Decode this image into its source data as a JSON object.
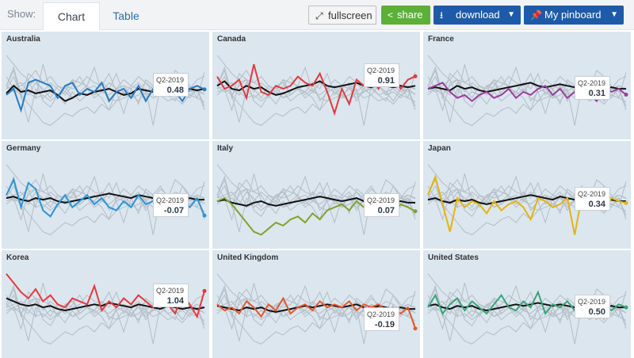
{
  "toolbar": {
    "show_label": "Show:",
    "tabs": [
      {
        "label": "Chart"
      },
      {
        "label": "Table"
      }
    ],
    "buttons": {
      "fullscreen": {
        "label": "fullscreen",
        "icon": "expand-icon"
      },
      "share": {
        "label": "share",
        "icon": "share-icon"
      },
      "download": {
        "label": "download",
        "icon": "download-icon"
      },
      "pinboard": {
        "label": "My pinboard",
        "icon": "pin-icon"
      }
    },
    "colors": {
      "share": "#5cb038",
      "primary": "#1d5ba8",
      "panel_bg": "#dbe6ef"
    }
  },
  "chart_data": [
    {
      "type": "line",
      "title": "Australia",
      "color": "#2b7bc0",
      "highlight": {
        "period": "Q2-2019",
        "value": "0.48"
      },
      "series": [
        {
          "name": "Australia",
          "values": [
            0.3,
            0.5,
            -0.2,
            0.7,
            0.8,
            0.7,
            0.6,
            0.2,
            0.6,
            0.7,
            0.3,
            0.5,
            0.4,
            0.7,
            0.1,
            0.4,
            0.5,
            0.2,
            0.6,
            0.1,
            0.5,
            0.3,
            0.6,
            0.4,
            0.1,
            0.5,
            0.6,
            0.48
          ]
        }
      ],
      "reference": [
        0.35,
        0.6,
        0.4,
        0.45,
        0.35,
        0.4,
        0.45,
        0.3,
        0.1,
        0.2,
        0.35,
        0.3,
        0.4,
        0.45,
        0.5,
        0.4,
        0.3,
        0.35,
        0.5,
        0.45,
        0.4,
        0.5,
        0.45,
        0.5,
        0.4,
        0.5,
        0.45,
        0.5
      ]
    },
    {
      "type": "line",
      "title": "Canada",
      "color": "#e03a3e",
      "highlight": {
        "period": "Q2-2019",
        "value": "0.91"
      },
      "series": [
        {
          "name": "Canada",
          "values": [
            0.9,
            0.5,
            0.6,
            0.8,
            0.2,
            1.3,
            0.4,
            0.3,
            0.6,
            0.5,
            0.6,
            0.9,
            0.7,
            0.6,
            1.0,
            0.4,
            -0.3,
            0.5,
            0.0,
            0.8,
            0.6,
            0.9,
            0.5,
            1.1,
            0.9,
            0.5,
            0.8,
            0.91
          ]
        }
      ],
      "reference": [
        0.6,
        0.75,
        0.5,
        0.45,
        0.6,
        0.5,
        0.55,
        0.4,
        0.3,
        0.35,
        0.45,
        0.55,
        0.6,
        0.65,
        0.75,
        0.6,
        0.55,
        0.6,
        0.65,
        0.7,
        0.6,
        0.55,
        0.65,
        0.6,
        0.55,
        0.6,
        0.55,
        0.6
      ]
    },
    {
      "type": "line",
      "title": "France",
      "color": "#9b3d9e",
      "highlight": {
        "period": "Q2-2019",
        "value": "0.31"
      },
      "series": [
        {
          "name": "France",
          "values": [
            0.5,
            0.6,
            0.7,
            0.4,
            0.2,
            0.3,
            0.1,
            0.3,
            0.4,
            0.2,
            0.3,
            0.5,
            0.2,
            0.4,
            0.3,
            0.5,
            0.6,
            0.3,
            0.5,
            0.2,
            0.4,
            0.5,
            0.3,
            0.1,
            0.6,
            0.4,
            0.5,
            0.31
          ]
        }
      ],
      "reference": [
        0.5,
        0.55,
        0.5,
        0.45,
        0.6,
        0.5,
        0.55,
        0.45,
        0.4,
        0.45,
        0.5,
        0.55,
        0.6,
        0.65,
        0.7,
        0.6,
        0.55,
        0.6,
        0.65,
        0.6,
        0.55,
        0.5,
        0.6,
        0.55,
        0.5,
        0.55,
        0.5,
        0.5
      ]
    },
    {
      "type": "line",
      "title": "Germany",
      "color": "#2a96d6",
      "highlight": {
        "period": "Q2-2019",
        "value": "-0.07"
      },
      "series": [
        {
          "name": "Germany",
          "values": [
            0.6,
            1.1,
            0.2,
            1.0,
            0.8,
            0.1,
            -0.1,
            0.3,
            0.6,
            0.2,
            0.4,
            0.6,
            0.3,
            0.5,
            0.2,
            0.1,
            0.4,
            0.2,
            0.6,
            0.3,
            0.4,
            0.5,
            0.6,
            0.3,
            0.4,
            0.2,
            0.5,
            -0.07
          ]
        }
      ],
      "reference": [
        0.5,
        0.55,
        0.45,
        0.4,
        0.5,
        0.45,
        0.5,
        0.4,
        0.35,
        0.4,
        0.45,
        0.5,
        0.55,
        0.6,
        0.65,
        0.6,
        0.55,
        0.5,
        0.6,
        0.55,
        0.5,
        0.45,
        0.55,
        0.5,
        0.45,
        0.5,
        0.45,
        0.45
      ]
    },
    {
      "type": "line",
      "title": "Italy",
      "color": "#7ea32b",
      "highlight": {
        "period": "Q2-2019",
        "value": "0.07"
      },
      "series": [
        {
          "name": "Italy",
          "values": [
            0.4,
            0.5,
            0.3,
            0.0,
            -0.3,
            -0.6,
            -0.7,
            -0.5,
            -0.3,
            -0.4,
            -0.2,
            -0.1,
            -0.3,
            0.0,
            -0.2,
            0.1,
            0.2,
            0.3,
            0.1,
            0.4,
            0.2,
            0.3,
            0.1,
            0.2,
            0.0,
            0.3,
            0.2,
            0.07
          ]
        }
      ],
      "reference": [
        0.4,
        0.45,
        0.35,
        0.3,
        0.25,
        0.35,
        0.4,
        0.3,
        0.25,
        0.3,
        0.35,
        0.4,
        0.45,
        0.5,
        0.55,
        0.5,
        0.45,
        0.4,
        0.45,
        0.5,
        0.4,
        0.35,
        0.45,
        0.4,
        0.35,
        0.4,
        0.35,
        0.35
      ]
    },
    {
      "type": "line",
      "title": "Japan",
      "color": "#e3b50f",
      "highlight": {
        "period": "Q2-2019",
        "value": "0.34"
      },
      "series": [
        {
          "name": "Japan",
          "values": [
            0.6,
            1.2,
            0.3,
            -0.6,
            0.5,
            0.2,
            0.4,
            0.3,
            0.0,
            0.4,
            0.1,
            0.3,
            0.4,
            0.2,
            -0.2,
            0.5,
            0.4,
            0.2,
            0.3,
            0.5,
            -0.7,
            0.6,
            0.3,
            0.4,
            0.1,
            0.5,
            0.4,
            0.34
          ]
        }
      ],
      "reference": [
        0.45,
        0.5,
        0.4,
        0.35,
        0.45,
        0.4,
        0.45,
        0.35,
        0.3,
        0.35,
        0.4,
        0.45,
        0.5,
        0.55,
        0.6,
        0.55,
        0.5,
        0.45,
        0.55,
        0.5,
        0.45,
        0.4,
        0.5,
        0.45,
        0.4,
        0.45,
        0.4,
        0.4
      ]
    },
    {
      "type": "line",
      "title": "Korea",
      "color": "#e8383d",
      "highlight": {
        "period": "Q2-2019",
        "value": "1.04"
      },
      "series": [
        {
          "name": "Korea",
          "values": [
            1.6,
            1.3,
            1.0,
            0.8,
            1.1,
            0.7,
            0.9,
            0.6,
            0.5,
            0.8,
            0.7,
            0.6,
            1.2,
            0.4,
            0.7,
            0.5,
            0.8,
            0.6,
            0.9,
            0.7,
            0.5,
            0.8,
            0.6,
            0.3,
            0.9,
            0.6,
            0.2,
            1.04
          ]
        }
      ],
      "reference": [
        0.8,
        0.7,
        0.6,
        0.55,
        0.6,
        0.5,
        0.55,
        0.45,
        0.4,
        0.45,
        0.5,
        0.55,
        0.6,
        0.55,
        0.65,
        0.6,
        0.55,
        0.5,
        0.6,
        0.55,
        0.5,
        0.45,
        0.55,
        0.5,
        0.45,
        0.5,
        0.45,
        0.5
      ]
    },
    {
      "type": "line",
      "title": "United Kingdom",
      "color": "#e4572e",
      "highlight": {
        "period": "Q2-2019",
        "value": "-0.19"
      },
      "series": [
        {
          "name": "United Kingdom",
          "values": [
            0.6,
            0.4,
            0.5,
            0.3,
            0.7,
            0.5,
            0.2,
            0.6,
            0.4,
            0.8,
            0.3,
            0.5,
            0.6,
            0.4,
            0.7,
            0.5,
            0.6,
            0.5,
            0.7,
            0.4,
            0.6,
            0.5,
            0.6,
            0.4,
            0.5,
            0.3,
            0.5,
            -0.19
          ]
        }
      ],
      "reference": [
        0.55,
        0.5,
        0.45,
        0.4,
        0.5,
        0.45,
        0.5,
        0.4,
        0.35,
        0.4,
        0.45,
        0.5,
        0.55,
        0.5,
        0.55,
        0.6,
        0.55,
        0.5,
        0.55,
        0.6,
        0.5,
        0.45,
        0.55,
        0.5,
        0.45,
        0.5,
        0.45,
        0.45
      ]
    },
    {
      "type": "line",
      "title": "United States",
      "color": "#3aa477",
      "highlight": {
        "period": "Q2-2019",
        "value": "0.50"
      },
      "series": [
        {
          "name": "United States",
          "values": [
            0.5,
            0.9,
            0.3,
            0.6,
            0.8,
            0.4,
            0.7,
            0.5,
            0.3,
            0.6,
            0.9,
            0.5,
            0.4,
            0.7,
            0.5,
            1.0,
            0.3,
            0.6,
            0.5,
            0.7,
            0.4,
            0.6,
            0.5,
            0.7,
            0.6,
            0.4,
            0.6,
            0.5
          ]
        }
      ],
      "reference": [
        0.55,
        0.6,
        0.5,
        0.45,
        0.55,
        0.5,
        0.55,
        0.45,
        0.4,
        0.45,
        0.5,
        0.55,
        0.6,
        0.55,
        0.6,
        0.65,
        0.6,
        0.55,
        0.6,
        0.55,
        0.5,
        0.55,
        0.6,
        0.55,
        0.5,
        0.55,
        0.5,
        0.5
      ]
    }
  ]
}
